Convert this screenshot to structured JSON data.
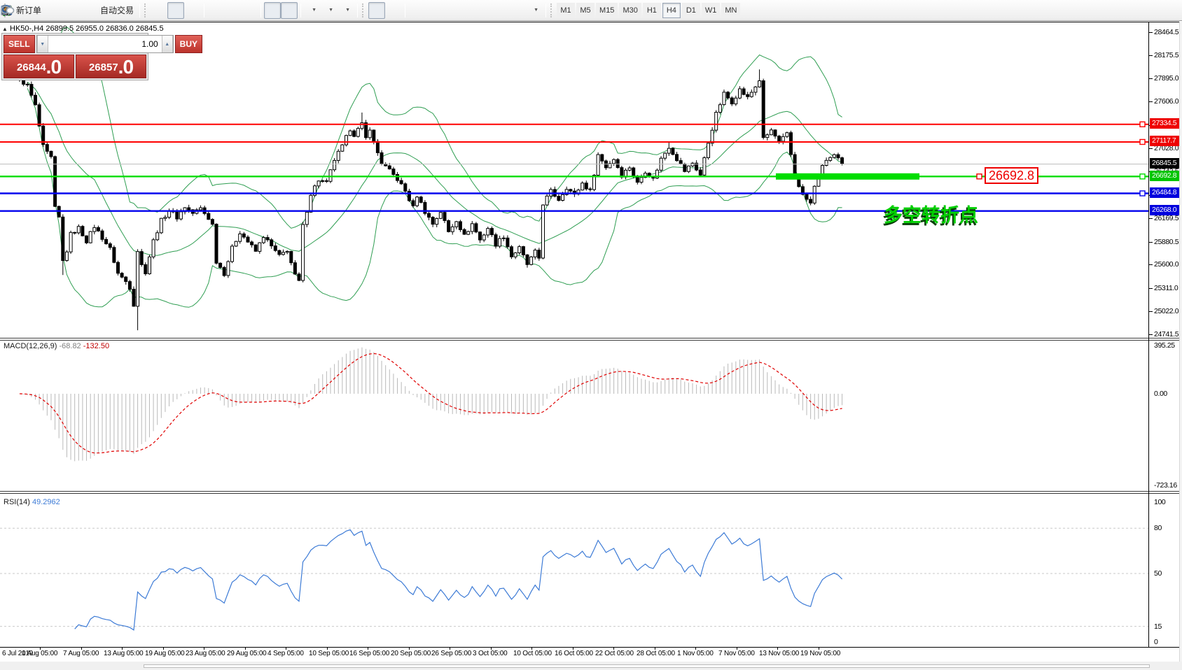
{
  "toolbar": {
    "new_order_label": "新订单",
    "autotrading_label": "自动交易",
    "timeframes": [
      "M1",
      "M5",
      "M15",
      "M30",
      "H1",
      "H4",
      "D1",
      "W1",
      "MN"
    ],
    "active_timeframe": "H4"
  },
  "trade_panel": {
    "sell_label": "SELL",
    "buy_label": "BUY",
    "volume": "1.00",
    "sell_price_main": "26844",
    "sell_price_big": ".0",
    "buy_price_main": "26857",
    "buy_price_big": ".0"
  },
  "symbol_bar": {
    "text": "HK50-,H4  26899.5 26955.0 26836.0 26845.5"
  },
  "chart_data": {
    "type": "candlestick",
    "symbol": "HK50-",
    "timeframe": "H4",
    "ohlc_display": {
      "open": "26899.5",
      "high": "26955.0",
      "low": "26836.0",
      "close": "26845.5"
    },
    "bid": 26845.5,
    "y_ticks": [
      28464.5,
      28175.5,
      27895.0,
      27606.0,
      27317.0,
      27028.0,
      26743.5,
      26458.5,
      26169.5,
      25880.5,
      25600.0,
      25311.0,
      25022.0,
      24741.5
    ],
    "levels": [
      {
        "value": 27334.5,
        "color": "#ff0000",
        "width": 2,
        "handle": true,
        "badge": "#ee0000"
      },
      {
        "value": 27117.7,
        "color": "#ff0000",
        "width": 2,
        "handle": true,
        "badge": "#ee0000"
      },
      {
        "value": 26845.5,
        "color": "#bdbdbd",
        "width": 1,
        "handle": false,
        "badge": "#000000"
      },
      {
        "value": 26692.8,
        "color": "#00dd00",
        "width": 2.4,
        "handle": true,
        "badge": "#00c400"
      },
      {
        "value": 26484.8,
        "color": "#0000ee",
        "width": 2.4,
        "handle": true,
        "badge": "#0000dd"
      },
      {
        "value": 26268.0,
        "color": "#0000ee",
        "width": 2.4,
        "handle": false,
        "badge": "#0000dd"
      }
    ],
    "thick_segment": {
      "price": 26692.8,
      "color": "#00dd00"
    },
    "price_label": {
      "value": "26692.8"
    },
    "annotation": {
      "text": "多空转折点"
    },
    "bollinger": {
      "period": 20,
      "deviation": 2,
      "color": "#2f9e52"
    },
    "candles_total": 210,
    "price_path": [
      [
        0,
        27890
      ],
      [
        2,
        27810
      ],
      [
        4,
        27560
      ],
      [
        6,
        27060
      ],
      [
        7,
        26980
      ],
      [
        8,
        26920
      ],
      [
        9,
        26300
      ],
      [
        10,
        26180
      ],
      [
        11,
        25650
      ],
      [
        12,
        25780
      ],
      [
        13,
        25980
      ],
      [
        15,
        26060
      ],
      [
        17,
        25900
      ],
      [
        19,
        26080
      ],
      [
        21,
        25940
      ],
      [
        23,
        25800
      ],
      [
        25,
        25500
      ],
      [
        27,
        25400
      ],
      [
        28,
        25330
      ],
      [
        29,
        25120
      ],
      [
        30,
        25780
      ],
      [
        31,
        25600
      ],
      [
        32,
        25520
      ],
      [
        34,
        25900
      ],
      [
        36,
        26150
      ],
      [
        38,
        26280
      ],
      [
        40,
        26190
      ],
      [
        42,
        26320
      ],
      [
        44,
        26240
      ],
      [
        46,
        26300
      ],
      [
        48,
        26180
      ],
      [
        49,
        26100
      ],
      [
        50,
        25650
      ],
      [
        52,
        25500
      ],
      [
        54,
        25810
      ],
      [
        56,
        26010
      ],
      [
        58,
        25890
      ],
      [
        60,
        25770
      ],
      [
        62,
        25960
      ],
      [
        64,
        25830
      ],
      [
        66,
        25710
      ],
      [
        68,
        25790
      ],
      [
        70,
        25470
      ],
      [
        71,
        25400
      ],
      [
        72,
        26080
      ],
      [
        74,
        26480
      ],
      [
        76,
        26650
      ],
      [
        78,
        26610
      ],
      [
        80,
        26900
      ],
      [
        82,
        27060
      ],
      [
        84,
        27280
      ],
      [
        85,
        27210
      ],
      [
        87,
        27330
      ],
      [
        88,
        27160
      ],
      [
        89,
        27290
      ],
      [
        90,
        27110
      ],
      [
        92,
        26860
      ],
      [
        94,
        26760
      ],
      [
        96,
        26660
      ],
      [
        98,
        26510
      ],
      [
        100,
        26310
      ],
      [
        101,
        26460
      ],
      [
        103,
        26260
      ],
      [
        105,
        26110
      ],
      [
        107,
        26260
      ],
      [
        109,
        26010
      ],
      [
        111,
        26160
      ],
      [
        113,
        25960
      ],
      [
        115,
        26110
      ],
      [
        117,
        25910
      ],
      [
        119,
        26060
      ],
      [
        121,
        25860
      ],
      [
        123,
        25960
      ],
      [
        125,
        25710
      ],
      [
        127,
        25810
      ],
      [
        129,
        25610
      ],
      [
        131,
        25760
      ],
      [
        132,
        25690
      ],
      [
        133,
        26360
      ],
      [
        135,
        26510
      ],
      [
        137,
        26410
      ],
      [
        139,
        26560
      ],
      [
        141,
        26460
      ],
      [
        143,
        26610
      ],
      [
        145,
        26510
      ],
      [
        147,
        26960
      ],
      [
        149,
        26810
      ],
      [
        151,
        26910
      ],
      [
        153,
        26710
      ],
      [
        155,
        26810
      ],
      [
        157,
        26610
      ],
      [
        159,
        26760
      ],
      [
        161,
        26660
      ],
      [
        163,
        26910
      ],
      [
        165,
        27060
      ],
      [
        167,
        26910
      ],
      [
        169,
        26760
      ],
      [
        171,
        26860
      ],
      [
        173,
        26710
      ],
      [
        175,
        27110
      ],
      [
        177,
        27460
      ],
      [
        179,
        27710
      ],
      [
        181,
        27610
      ],
      [
        183,
        27760
      ],
      [
        185,
        27660
      ],
      [
        187,
        27800
      ],
      [
        188,
        27880
      ],
      [
        189,
        27150
      ],
      [
        191,
        27260
      ],
      [
        193,
        27110
      ],
      [
        195,
        27210
      ],
      [
        197,
        26710
      ],
      [
        199,
        26460
      ],
      [
        201,
        26360
      ],
      [
        202,
        26560
      ],
      [
        203,
        26710
      ],
      [
        205,
        26900
      ],
      [
        207,
        26950
      ],
      [
        209,
        26845.5
      ]
    ],
    "spikes": [
      {
        "i": 30,
        "low": 24800
      },
      {
        "i": 11,
        "low": 25480
      },
      {
        "i": 87,
        "high": 27480
      },
      {
        "i": 165,
        "high": 27120
      },
      {
        "i": 188,
        "high": 28010
      }
    ],
    "macd": {
      "label": "MACD(12,26,9)",
      "main_value": "-68.82",
      "signal_value": "-132.50",
      "scale_max": "395.25",
      "scale_zero": "0.00",
      "scale_min": "-723.16",
      "histogram_color": "#b9b9b9",
      "signal_color": "#e00000"
    },
    "rsi": {
      "label": "RSI(14)",
      "value": "49.2962",
      "line_color": "#3d7bd6",
      "scale": [
        "100",
        "80",
        "50",
        "15",
        "0"
      ],
      "scale_values": [
        100,
        80,
        50,
        15,
        0
      ],
      "dashed_levels": [
        80,
        50,
        15
      ]
    },
    "dates": [
      "6 Jul 2019",
      "1 Aug 05:00",
      "7 Aug 05:00",
      "13 Aug 05:00",
      "19 Aug 05:00",
      "23 Aug 05:00",
      "29 Aug 05:00",
      "4 Sep 05:00",
      "10 Sep 05:00",
      "16 Sep 05:00",
      "20 Sep 05:00",
      "26 Sep 05:00",
      "3 Oct 05:00",
      "10 Oct 05:00",
      "16 Oct 05:00",
      "22 Oct 05:00",
      "28 Oct 05:00",
      "1 Nov 05:00",
      "7 Nov 05:00",
      "13 Nov 05:00",
      "19 Nov 05:00"
    ]
  }
}
